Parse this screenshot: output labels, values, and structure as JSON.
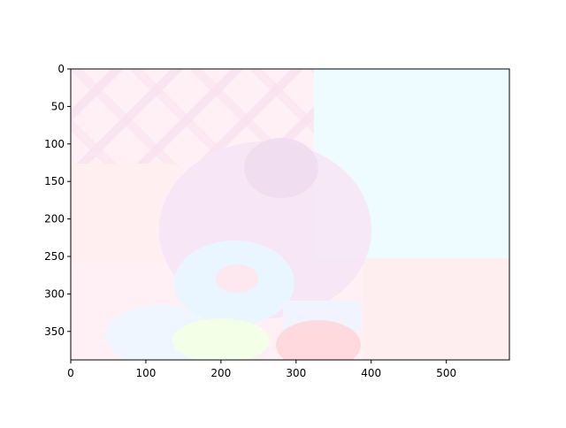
{
  "figure": {
    "image_extent": {
      "x": [
        0,
        584
      ],
      "y": [
        388,
        0
      ]
    },
    "x_ticks": [
      {
        "value": 0,
        "label": "0"
      },
      {
        "value": 100,
        "label": "100"
      },
      {
        "value": 200,
        "label": "200"
      },
      {
        "value": 300,
        "label": "300"
      },
      {
        "value": 400,
        "label": "400"
      },
      {
        "value": 500,
        "label": "500"
      }
    ],
    "y_ticks": [
      {
        "value": 0,
        "label": "0"
      },
      {
        "value": 50,
        "label": "50"
      },
      {
        "value": 100,
        "label": "100"
      },
      {
        "value": 150,
        "label": "150"
      },
      {
        "value": 200,
        "label": "200"
      },
      {
        "value": 250,
        "label": "250"
      },
      {
        "value": 300,
        "label": "300"
      },
      {
        "value": 350,
        "label": "350"
      }
    ],
    "colors": {
      "background": "#ffffff",
      "axes": "#000000",
      "pink_wash": "#fff0f5",
      "cyan_wash": "#eefcff",
      "peach_wash": "#ffeef0",
      "lavender": "#f6e6f6",
      "highlight_cyan": "#e8f6ff",
      "highlight_green": "#f2ffe6",
      "accent_red": "#ffd6dc"
    }
  }
}
